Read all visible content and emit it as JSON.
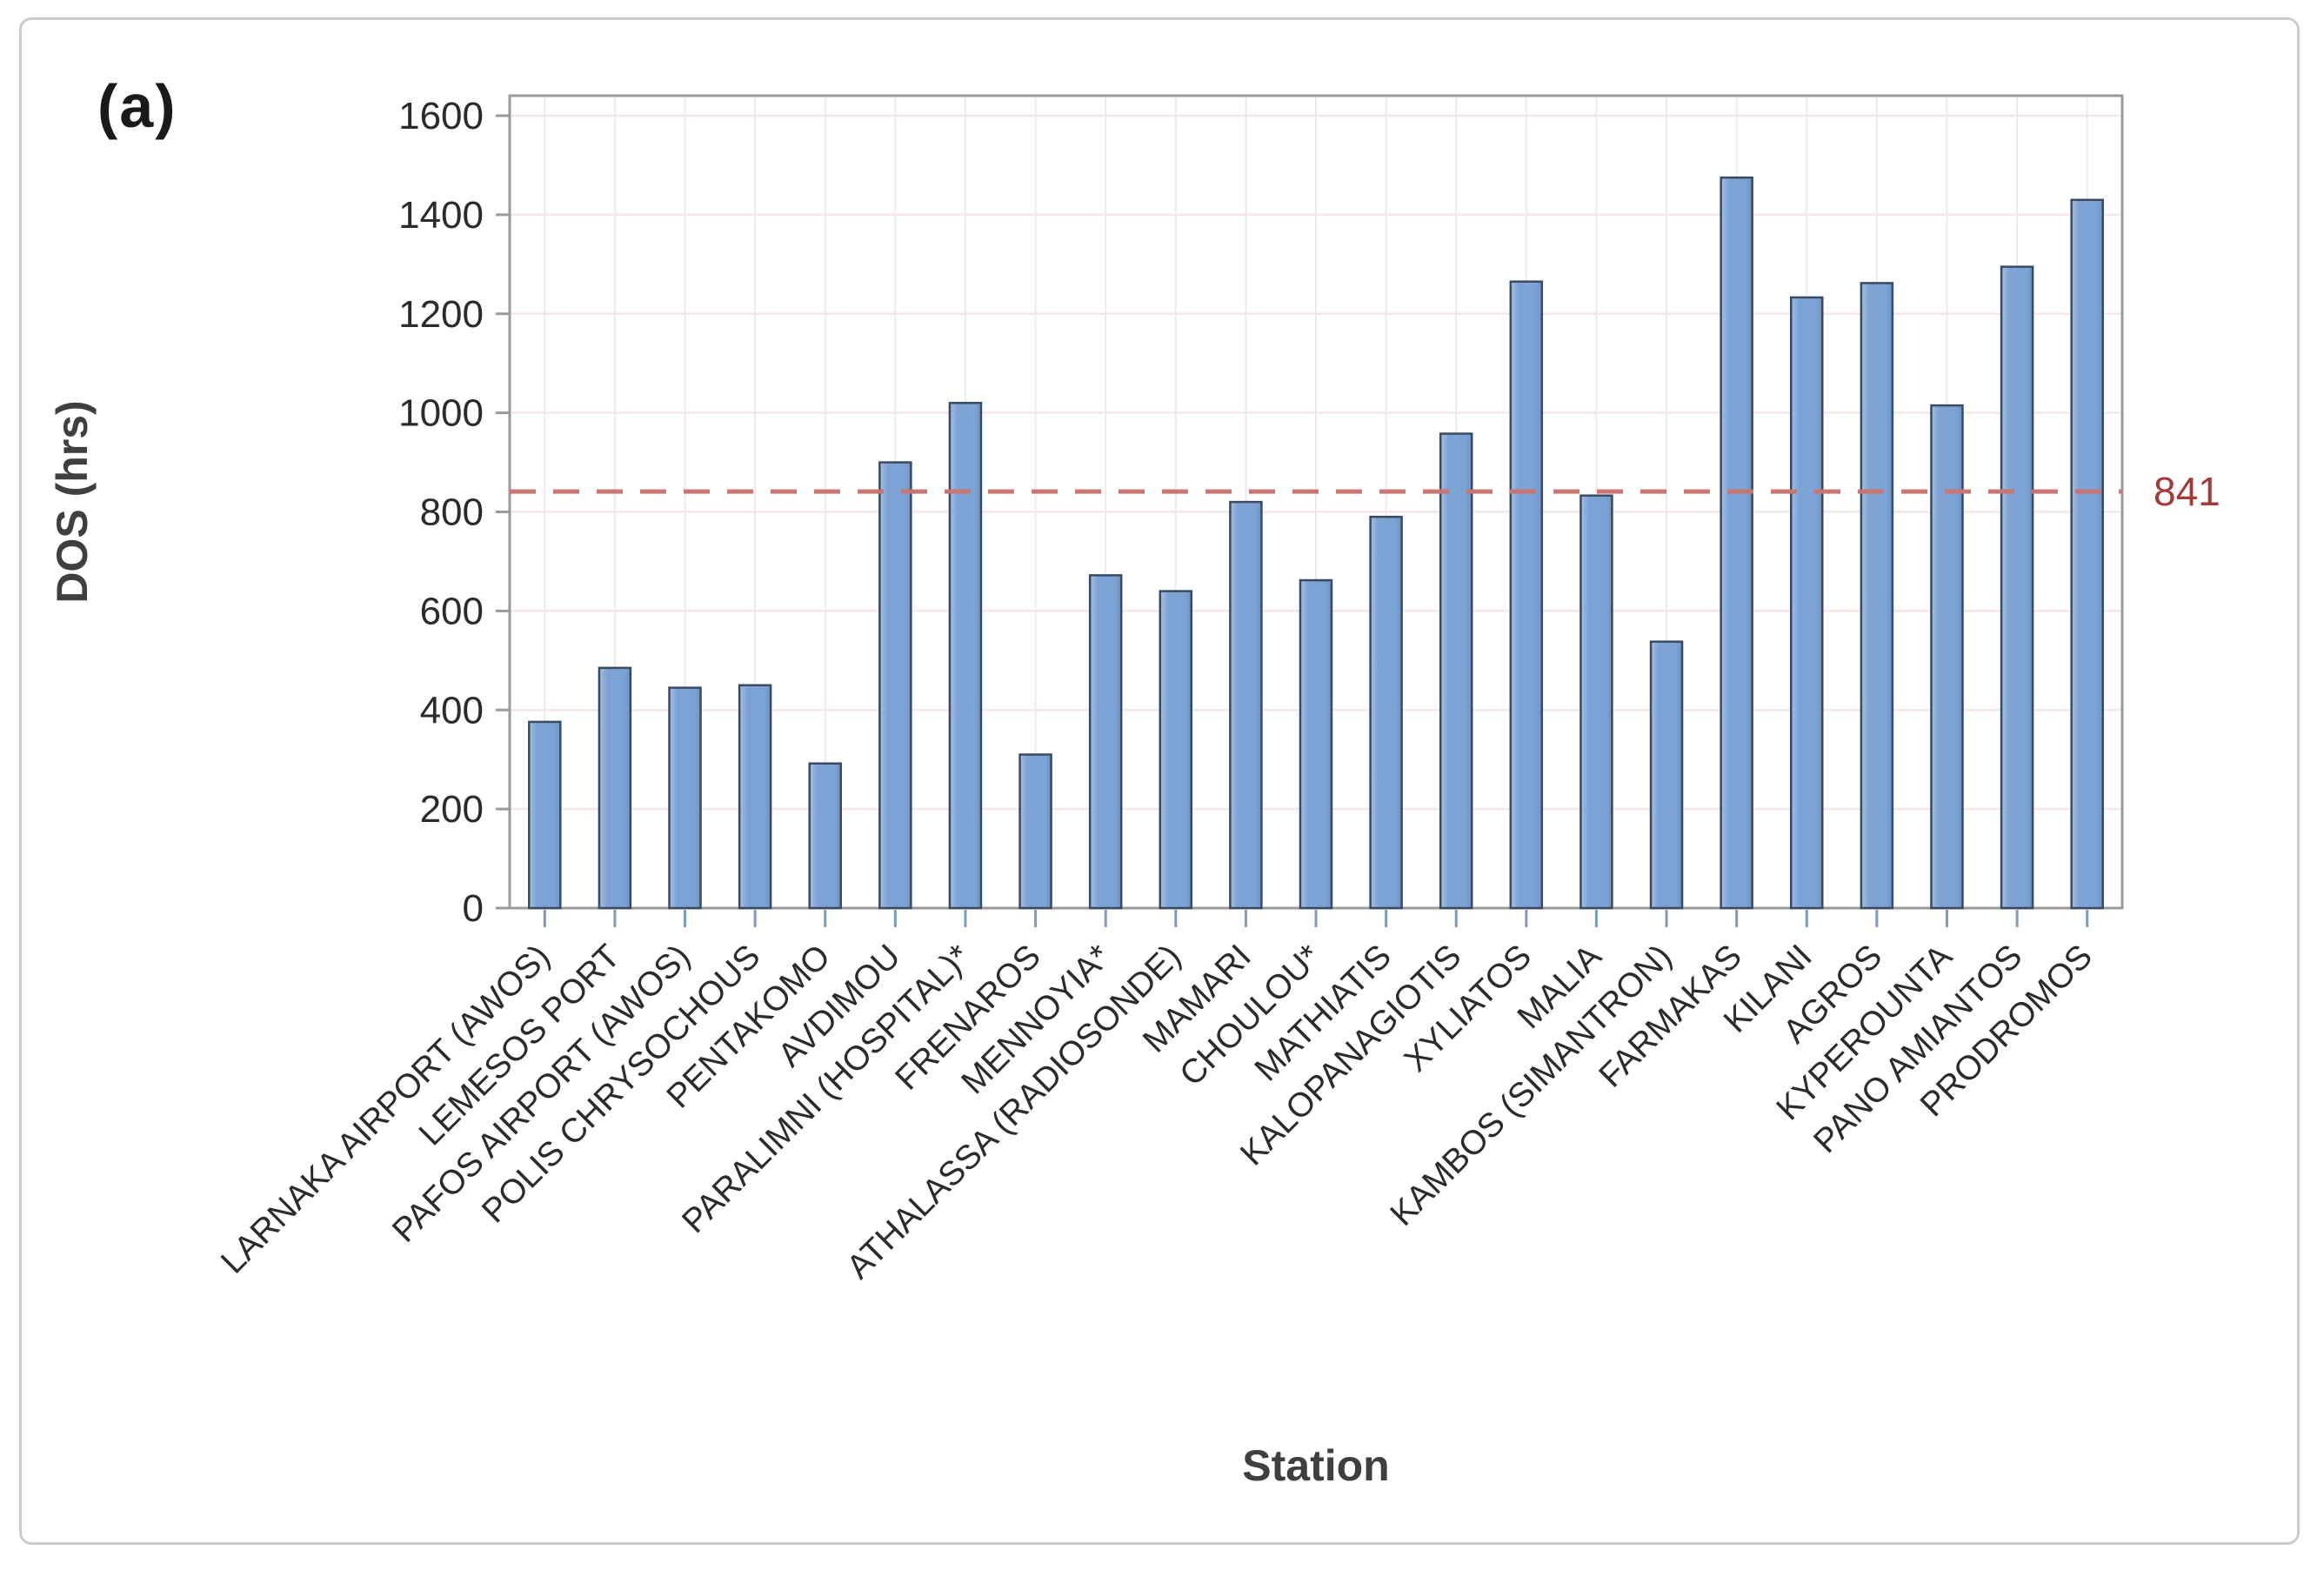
{
  "figure_label": "(a)",
  "chart_data": {
    "type": "bar",
    "title": "",
    "xlabel": "Station",
    "ylabel": "DOS (hrs)",
    "ylim": [
      0,
      1640
    ],
    "yticks": [
      0,
      200,
      400,
      600,
      800,
      1000,
      1200,
      1400,
      1600
    ],
    "x_tick_label_angle": 45,
    "grid": true,
    "legend_position": "none",
    "categories": [
      "LARNAKA AIRPORT (AWOS)",
      "LEMESOS PORT",
      "PAFOS AIRPORT (AWOS)",
      "POLIS CHRYSOCHOUS",
      "PENTAKOMO",
      "AVDIMOU",
      "PARALIMNI (HOSPITAL)*",
      "FRENAROS",
      "MENNOYIA*",
      "ATHALASSA (RADIOSONDE)",
      "MAMARI",
      "CHOULOU*",
      "MATHIATIS",
      "KALOPANAGIOTIS",
      "XYLIATOS",
      "MALIA",
      "KAMBOS (SIMANTRON)",
      "FARMAKAS",
      "KILANI",
      "AGROS",
      "KYPEROUNTA",
      "PANO AMIANTOS",
      "PRODROMOS"
    ],
    "values": [
      376,
      485,
      445,
      450,
      292,
      900,
      1020,
      310,
      672,
      640,
      820,
      662,
      790,
      958,
      1265,
      833,
      538,
      1475,
      1233,
      1262,
      1015,
      1295,
      1430
    ],
    "reference_line": {
      "value": 841,
      "label": "841",
      "style": "dashed",
      "line_color": "#c87672",
      "label_color": "#a33a38"
    },
    "colors": {
      "bar_fill": "#7da3d4",
      "bar_fill_light": "#a6c0e2",
      "bar_fill_dark": "#6d93c4",
      "bar_border": "#3a4a63",
      "grid_line": "#f5e7e7",
      "axis_line": "#9a9a9a",
      "y_tick_color": "#9a9a9a",
      "x_tick_color": "#7d9cc2",
      "tick_label_color": "#2b2b2b",
      "axis_title_color": "#3f3f3f"
    }
  }
}
